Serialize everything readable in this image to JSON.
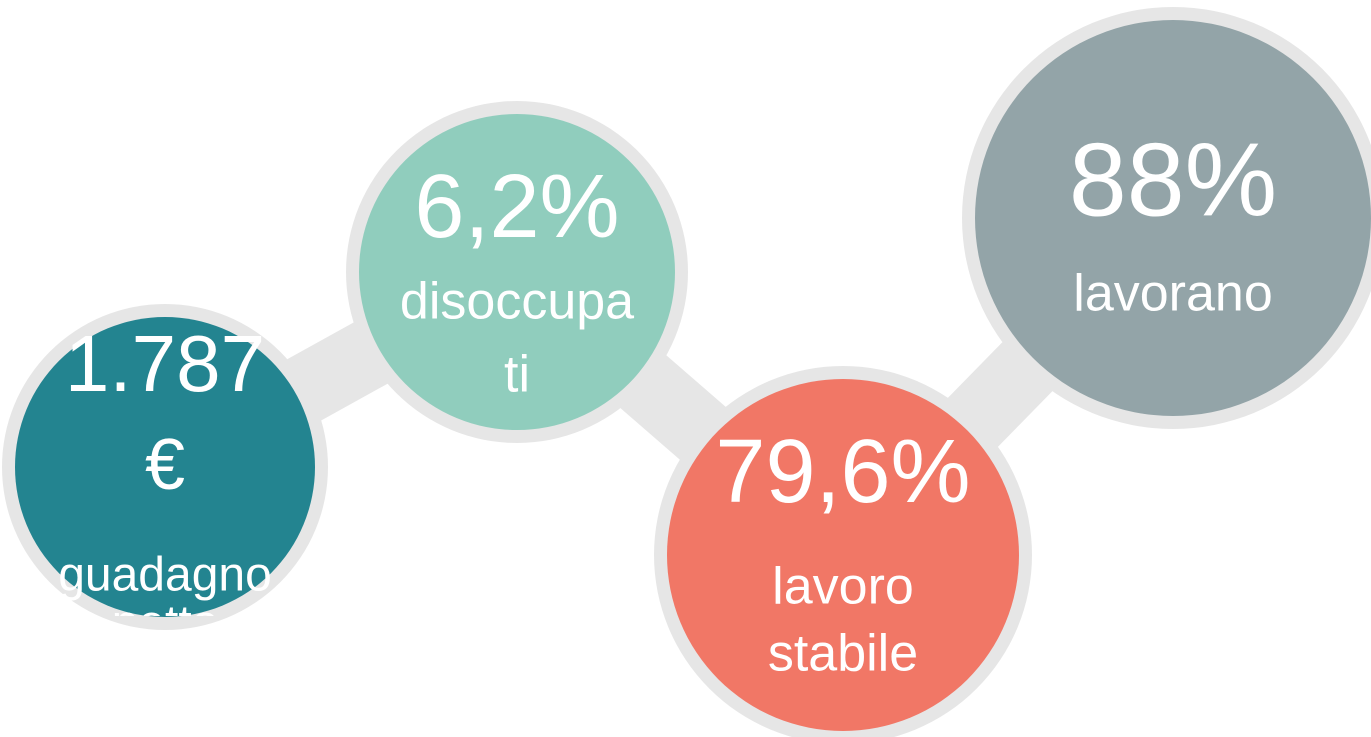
{
  "bubbles": [
    {
      "value_lines": [
        "1.787",
        "€"
      ],
      "label_lines": [
        "guadagno",
        "netto"
      ]
    },
    {
      "value_lines": [
        "6,2%"
      ],
      "label_lines": [
        "disoccupa",
        "ti"
      ]
    },
    {
      "value_lines": [
        "79,6%"
      ],
      "label_lines": [
        "lavoro",
        "stabile"
      ]
    },
    {
      "value_lines": [
        "88%"
      ],
      "label_lines": [
        "lavorano"
      ]
    }
  ]
}
